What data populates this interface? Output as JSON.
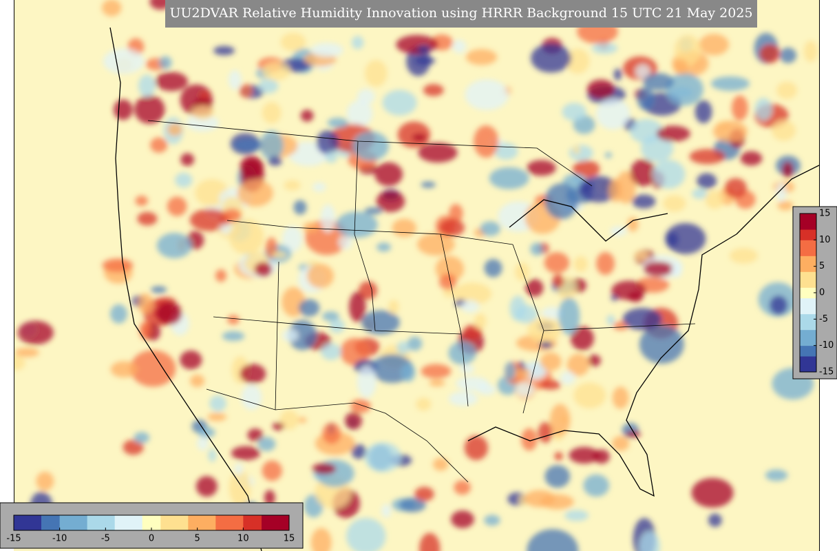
{
  "title": "UU2DVAR Relative Humidity Innovation using HRRR Background 15 UTC 21 May 2025",
  "colormap": [
    "#313695",
    "#4575b4",
    "#74add1",
    "#abd9e9",
    "#e0f3f8",
    "#ffffbf",
    "#fee090",
    "#fdae61",
    "#f46d43",
    "#d73027",
    "#a50026"
  ],
  "colorbars": [
    {
      "orientation": "horizontal",
      "limits": [
        -15,
        15
      ],
      "ticks": [
        -15,
        -10,
        -5,
        0,
        5,
        10,
        15
      ]
    },
    {
      "orientation": "vertical",
      "limits": [
        -15,
        15
      ],
      "ticks": [
        15,
        10,
        5,
        0,
        -5,
        -10,
        -15
      ]
    }
  ]
}
